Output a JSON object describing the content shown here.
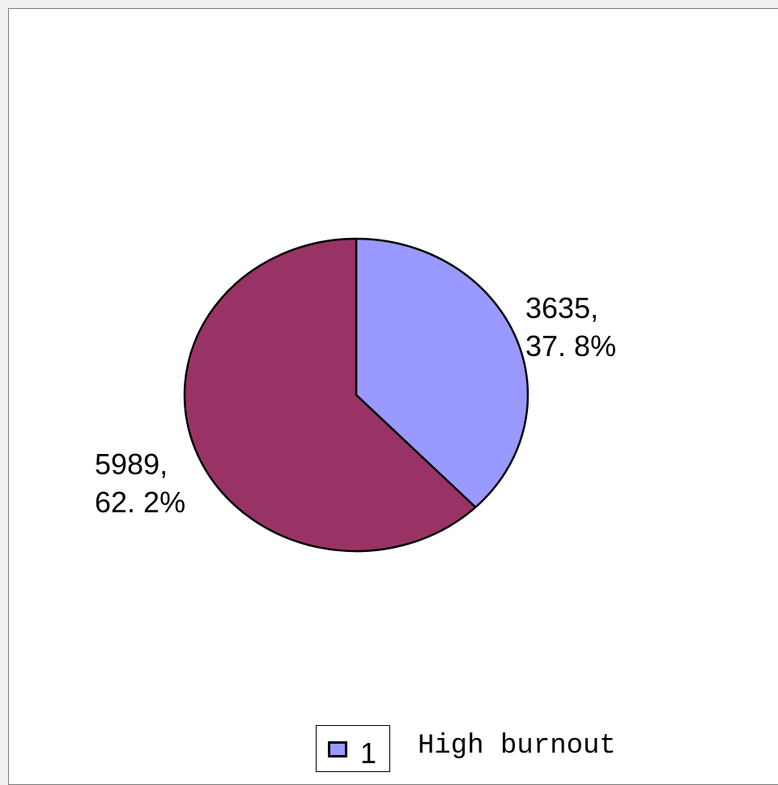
{
  "chart_data": {
    "type": "pie",
    "slices": [
      {
        "value": 3635,
        "percent": "37. 8%",
        "color": "#9999ff"
      },
      {
        "value": 5989,
        "percent": "62. 2%",
        "color": "#993366"
      }
    ],
    "labels": [
      {
        "line1": "3635,",
        "line2": "37. 8%"
      },
      {
        "line1": "5989,",
        "line2": "62. 2%"
      }
    ],
    "legend": {
      "number": "1",
      "text": "High burnout",
      "swatch_color": "#9999ff"
    }
  }
}
